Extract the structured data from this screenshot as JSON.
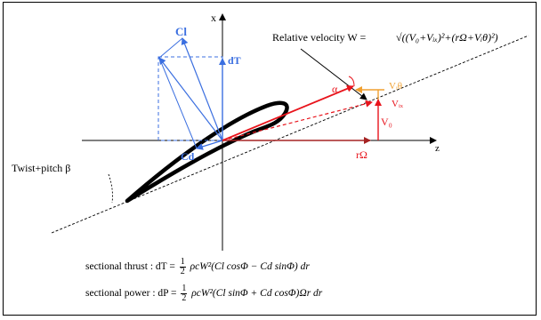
{
  "axes": {
    "x": "x",
    "z": "z"
  },
  "relative_velocity": {
    "prefix": "Relative velocity W = ",
    "formula": "√((V₀+Vᵢₓ)²+(rΩ+Vᵢθ)²)"
  },
  "forces": {
    "lift": "Cl",
    "drag": "Cd",
    "thrust": "dT"
  },
  "velocities": {
    "axial": "V₀",
    "induced_axial": "Vᵢₓ",
    "induced_tangential": "Vᵢθ",
    "rotational": "rΩ",
    "angle": "α"
  },
  "twist": {
    "label": "Twist+pitch β"
  },
  "equations": {
    "thrust": {
      "prefix": "sectional thrust : dT = ",
      "num": "1",
      "den": "2",
      "rest": " ρcW²(Cl cosΦ − Cd sinΦ) dr"
    },
    "power": {
      "prefix": "sectional power : dP = ",
      "num": "1",
      "den": "2",
      "rest": " ρcW²(Cl sinΦ + Cd cosΦ)Ωr dr"
    }
  },
  "colors": {
    "blue": "#3b6fe0",
    "red": "#e8141c",
    "dark_red": "#a52323",
    "orange": "#f0a030",
    "black": "#000000"
  }
}
